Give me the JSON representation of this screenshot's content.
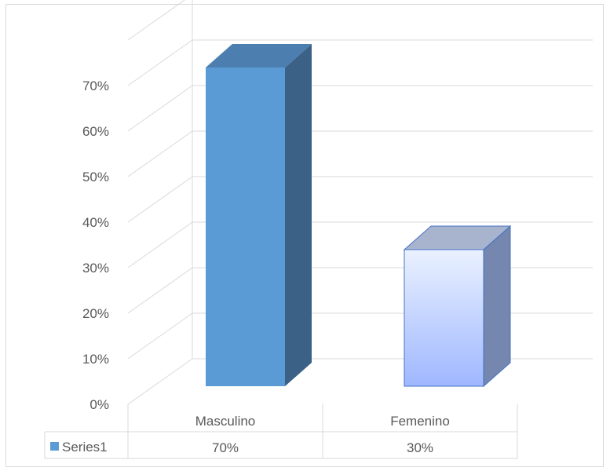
{
  "chart_data": {
    "type": "bar",
    "categories": [
      "Masculino",
      "Femenino"
    ],
    "series": [
      {
        "name": "Series1",
        "values": [
          0.7,
          0.3
        ],
        "value_labels": [
          "70%",
          "30%"
        ]
      }
    ],
    "title": "",
    "xlabel": "",
    "ylabel": "",
    "ylim": [
      0,
      0.7
    ],
    "y_ticks": [
      "0%",
      "10%",
      "20%",
      "30%",
      "40%",
      "50%",
      "60%",
      "70%"
    ],
    "grid": true,
    "legend_placement": "data-table",
    "colors": {
      "masculino_front": "#5B9BD5",
      "masculino_side": "#3B6286",
      "masculino_top": "#4C7FB0",
      "femenino_gradient_top": "#EAF1FF",
      "femenino_gradient_bottom": "#9FB7FF",
      "femenino_side": "#7587AE",
      "femenino_top": "#A8B3CE",
      "femenino_border": "#4472C4",
      "legend_key": "#5B9BD5",
      "gridline": "#D9D9D9",
      "tick_text": "#595959"
    }
  }
}
